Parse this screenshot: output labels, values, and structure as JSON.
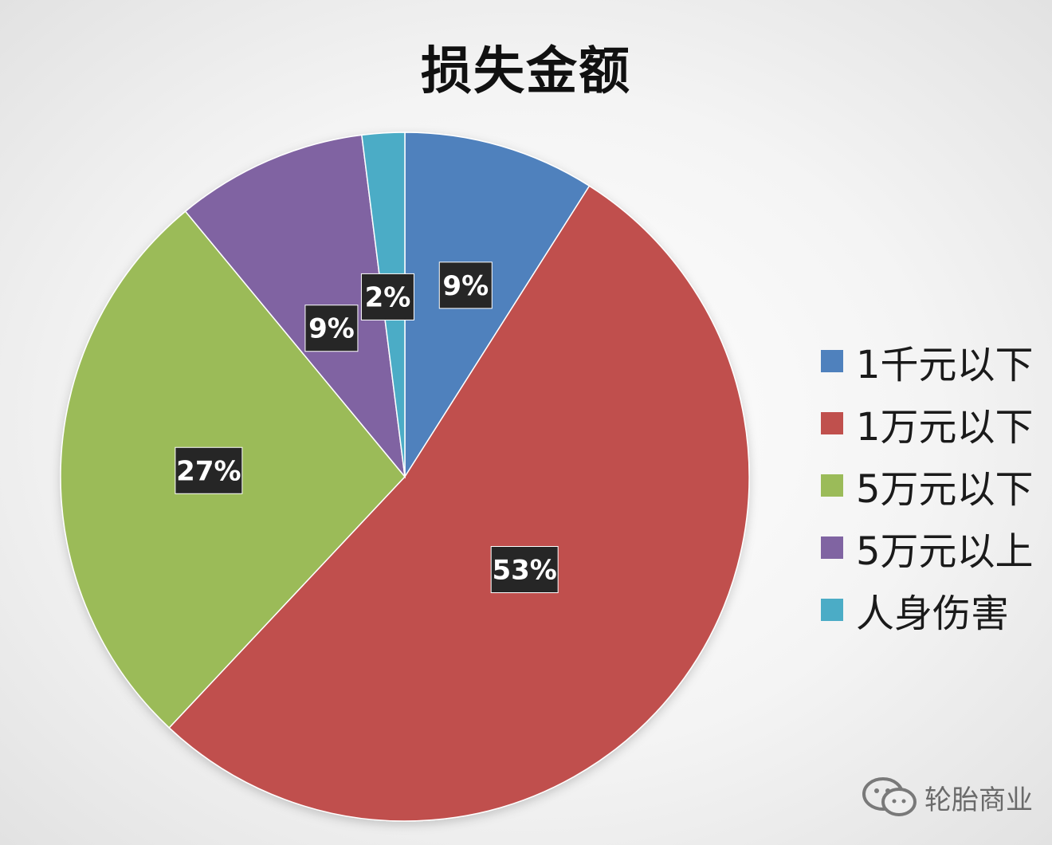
{
  "chart_data": {
    "type": "pie",
    "title": "损失金额",
    "categories": [
      "1千元以下",
      "1万元以下",
      "5万元以下",
      "5万元以上",
      "人身伤害"
    ],
    "values": [
      9,
      53,
      27,
      9,
      2
    ],
    "data_labels": [
      "9%",
      "53%",
      "27%",
      "9%",
      "2%"
    ],
    "colors": [
      "#4f81bd",
      "#c0504d",
      "#9bbb59",
      "#8064a2",
      "#4bacc6"
    ],
    "legend_position": "right",
    "start_angle_deg": 0,
    "direction": "clockwise"
  },
  "watermark": {
    "text": "轮胎商业",
    "icon": "wechat-icon"
  }
}
